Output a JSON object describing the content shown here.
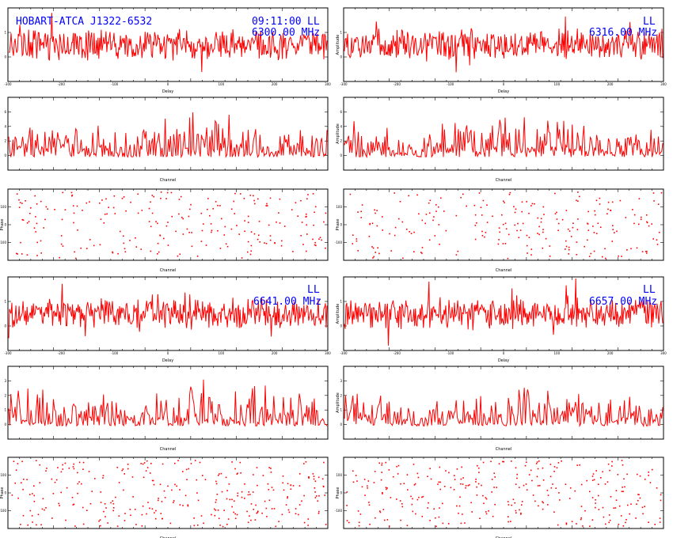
{
  "colors": {
    "trace": "#ff0000",
    "annotation": "#0000ff",
    "axes": "#000000",
    "background": "#ffffff"
  },
  "header": {
    "source": "HOBART-ATCA J1322-6532",
    "time": "09:11:00",
    "polarization": "LL"
  },
  "chart_data": [
    {
      "id": "p1",
      "type": "line",
      "band": 1,
      "kind": "delay",
      "pol": "LL",
      "freq_label": "6300.00 MHz",
      "xlabel": "Delay",
      "ylabel": "",
      "x_ticks": [
        "-300",
        "-200",
        "-100",
        "0",
        "100",
        "200",
        "300"
      ],
      "y_ticks": [
        "0",
        "1"
      ]
    },
    {
      "id": "p2",
      "type": "line",
      "band": 2,
      "kind": "delay",
      "pol": "LL",
      "freq_label": "6316.00 MHz",
      "xlabel": "Delay",
      "ylabel": "Amplitude",
      "x_ticks": [
        "-300",
        "-200",
        "-100",
        "0",
        "100",
        "200",
        "300"
      ],
      "y_ticks": [
        "0",
        "1"
      ]
    },
    {
      "id": "p3",
      "type": "line",
      "band": 1,
      "kind": "amplitude",
      "xlabel": "Channel",
      "ylabel": "",
      "y_ticks": [
        "0",
        "2",
        "4",
        "6"
      ]
    },
    {
      "id": "p4",
      "type": "line",
      "band": 2,
      "kind": "amplitude",
      "xlabel": "Channel",
      "ylabel": "Amplitude",
      "y_ticks": [
        "0",
        "2",
        "4",
        "6"
      ]
    },
    {
      "id": "p5",
      "type": "scatter",
      "band": 1,
      "kind": "phase",
      "xlabel": "Channel",
      "ylabel": "Phase",
      "y_ticks": [
        "-100",
        "0",
        "100"
      ]
    },
    {
      "id": "p6",
      "type": "scatter",
      "band": 2,
      "kind": "phase",
      "xlabel": "Channel",
      "ylabel": "Phase",
      "y_ticks": [
        "-100",
        "0",
        "100"
      ]
    },
    {
      "id": "p7",
      "type": "line",
      "band": 3,
      "kind": "delay",
      "pol": "LL",
      "freq_label": "6641.00 MHz",
      "xlabel": "Delay",
      "ylabel": "",
      "x_ticks": [
        "-300",
        "-200",
        "-100",
        "0",
        "100",
        "200",
        "300"
      ],
      "y_ticks": [
        "0",
        "1"
      ]
    },
    {
      "id": "p8",
      "type": "line",
      "band": 4,
      "kind": "delay",
      "pol": "LL",
      "freq_label": "6657.00 MHz",
      "xlabel": "Delay",
      "ylabel": "Amplitude",
      "x_ticks": [
        "-300",
        "-200",
        "-100",
        "0",
        "100",
        "200",
        "300"
      ],
      "y_ticks": [
        "0",
        "1"
      ]
    },
    {
      "id": "p9",
      "type": "line",
      "band": 3,
      "kind": "amplitude",
      "xlabel": "Channel",
      "ylabel": "",
      "y_ticks": [
        "0",
        "1",
        "2",
        "3"
      ]
    },
    {
      "id": "p10",
      "type": "line",
      "band": 4,
      "kind": "amplitude",
      "xlabel": "Channel",
      "ylabel": "Amplitude",
      "y_ticks": [
        "0",
        "1",
        "2",
        "3"
      ]
    },
    {
      "id": "p11",
      "type": "scatter",
      "band": 3,
      "kind": "phase",
      "xlabel": "Channel",
      "ylabel": "Phase",
      "y_ticks": [
        "-100",
        "0",
        "100"
      ]
    },
    {
      "id": "p12",
      "type": "scatter",
      "band": 4,
      "kind": "phase",
      "xlabel": "Channel",
      "ylabel": "Phase",
      "y_ticks": [
        "-100",
        "0",
        "100"
      ]
    }
  ]
}
